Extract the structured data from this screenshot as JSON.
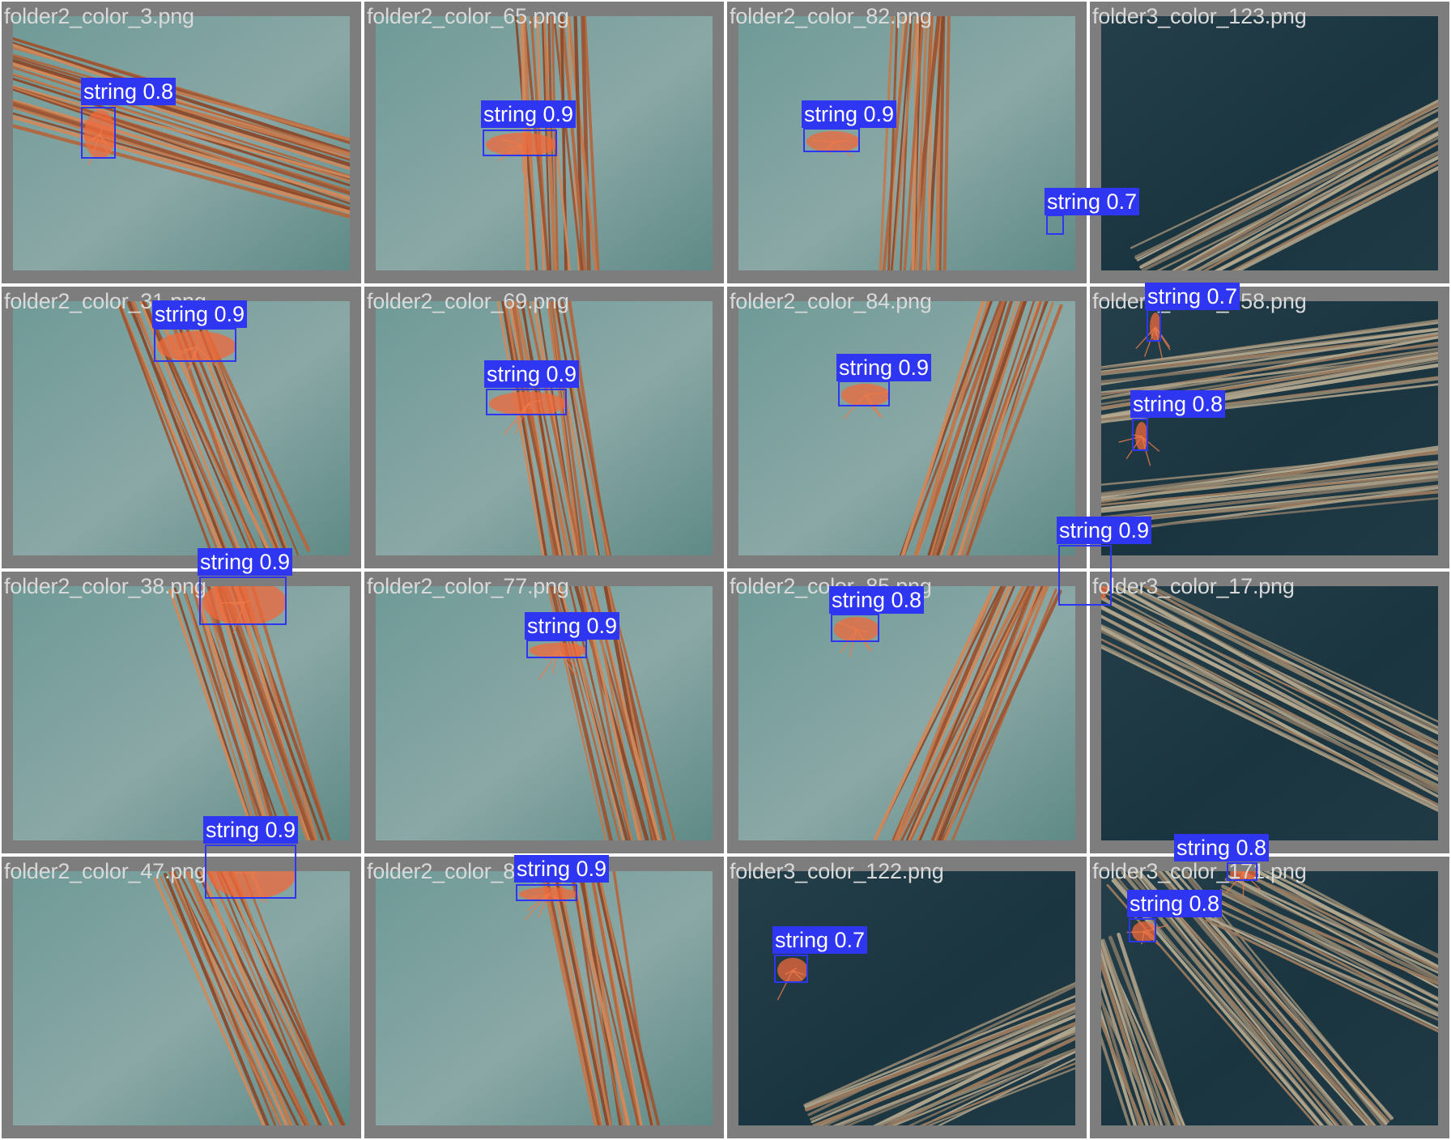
{
  "colors": {
    "box": "#2f36f2",
    "label_text": "#ffffff",
    "filename_text": "#d9d9d9",
    "tile_background": "#7d7d7d",
    "twig": "#b3683f",
    "string": "#f0683a"
  },
  "tiles": [
    {
      "filename": "folder2_color_3.png",
      "scene": "light",
      "detections": [
        {
          "label": "string 0.8"
        }
      ]
    },
    {
      "filename": "folder2_color_65.png",
      "scene": "light",
      "detections": [
        {
          "label": "string 0.9"
        }
      ]
    },
    {
      "filename": "folder2_color_82.png",
      "scene": "light",
      "detections": [
        {
          "label": "string 0.9"
        }
      ]
    },
    {
      "filename": "folder3_color_123.png",
      "scene": "dark",
      "detections": [
        {
          "label": "string 0.7"
        }
      ]
    },
    {
      "filename": "folder2_color_31.png",
      "scene": "light",
      "detections": [
        {
          "label": "string 0.9"
        }
      ]
    },
    {
      "filename": "folder2_color_69.png",
      "scene": "light",
      "detections": [
        {
          "label": "string 0.9"
        }
      ]
    },
    {
      "filename": "folder2_color_84.png",
      "scene": "light",
      "detections": [
        {
          "label": "string 0.9"
        }
      ]
    },
    {
      "filename": "folder3_color_158.png",
      "scene": "dark",
      "detections": [
        {
          "label": "string 0.7"
        },
        {
          "label": "string 0.8"
        }
      ]
    },
    {
      "filename": "folder2_color_38.png",
      "scene": "light",
      "detections": [
        {
          "label": "string 0.9"
        }
      ]
    },
    {
      "filename": "folder2_color_77.png",
      "scene": "light",
      "detections": [
        {
          "label": "string 0.9"
        }
      ]
    },
    {
      "filename": "folder2_color_85.png",
      "scene": "light",
      "detections": [
        {
          "label": "string 0.8"
        }
      ]
    },
    {
      "filename": "folder3_color_17.png",
      "scene": "dark",
      "detections": [
        {
          "label": "string 0.9"
        }
      ]
    },
    {
      "filename": "folder2_color_47.png",
      "scene": "light",
      "detections": [
        {
          "label": "string 0.9"
        }
      ]
    },
    {
      "filename": "folder2_color_80.png",
      "scene": "light",
      "detections": [
        {
          "label": "string 0.9"
        }
      ]
    },
    {
      "filename": "folder3_color_122.png",
      "scene": "dark",
      "detections": [
        {
          "label": "string 0.7"
        }
      ]
    },
    {
      "filename": "folder3_color_171.png",
      "scene": "dark",
      "detections": [
        {
          "label": "string 0.8"
        },
        {
          "label": "string 0.8"
        }
      ]
    }
  ]
}
